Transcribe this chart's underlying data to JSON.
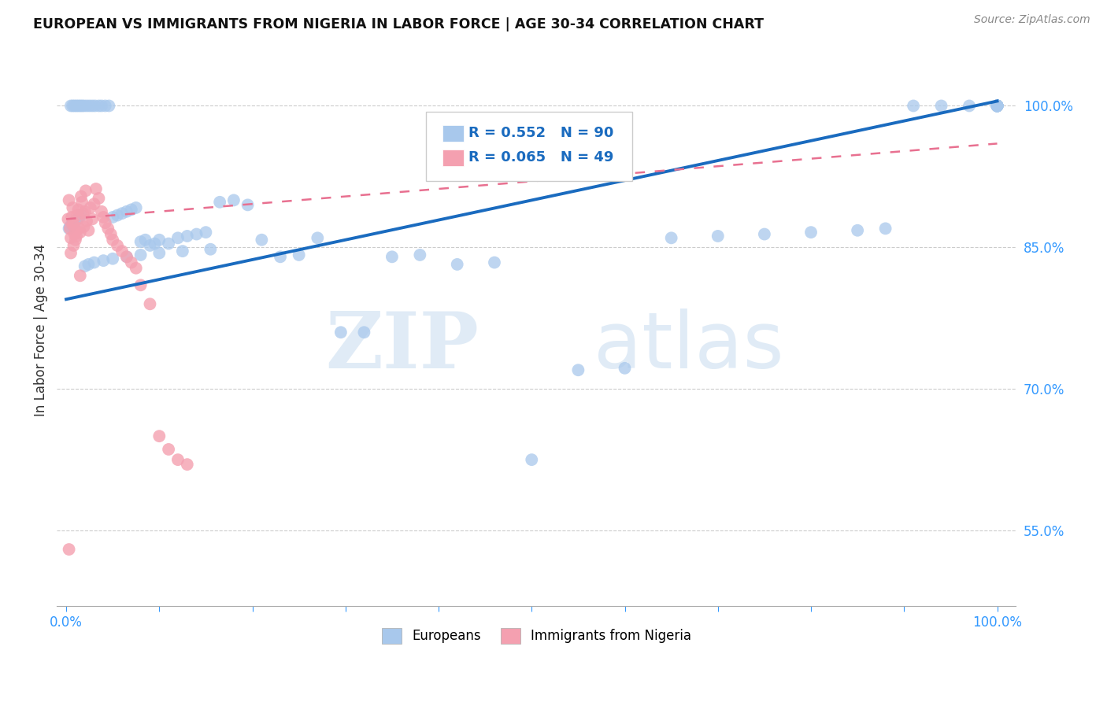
{
  "title": "EUROPEAN VS IMMIGRANTS FROM NIGERIA IN LABOR FORCE | AGE 30-34 CORRELATION CHART",
  "source": "Source: ZipAtlas.com",
  "ylabel": "In Labor Force | Age 30-34",
  "ytick_labels": [
    "100.0%",
    "85.0%",
    "70.0%",
    "55.0%"
  ],
  "ytick_values": [
    1.0,
    0.85,
    0.7,
    0.55
  ],
  "watermark_zip": "ZIP",
  "watermark_atlas": "atlas",
  "legend_blue_r": "R = 0.552",
  "legend_blue_n": "N = 90",
  "legend_pink_r": "R = 0.065",
  "legend_pink_n": "N = 49",
  "legend_label_blue": "Europeans",
  "legend_label_pink": "Immigrants from Nigeria",
  "blue_color": "#A8C8EC",
  "pink_color": "#F4A0B0",
  "line_blue": "#1A6BBF",
  "line_pink": "#E87090",
  "blue_line_start_y": 0.795,
  "blue_line_end_y": 1.005,
  "pink_line_start_y": 0.88,
  "pink_line_end_y": 0.96,
  "xmin": 0.0,
  "xmax": 1.0,
  "ymin": 0.47,
  "ymax": 1.055
}
